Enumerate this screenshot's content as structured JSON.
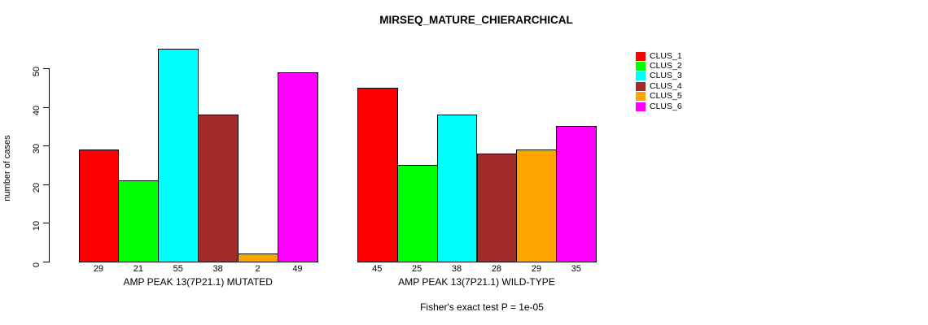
{
  "chart_data": {
    "type": "bar",
    "title": "MIRSEQ_MATURE_CHIERARCHICAL",
    "ylabel": "number of cases",
    "subtitle": "Fisher's exact test P = 1e-05",
    "ylim": [
      0,
      55
    ],
    "yticks": [
      0,
      10,
      20,
      30,
      40,
      50
    ],
    "grid": "off",
    "legend_position": "right",
    "bar_value_labels_shown": true,
    "categories": [
      "AMP PEAK 13(7P21.1) MUTATED",
      "AMP PEAK 13(7P21.1) WILD-TYPE"
    ],
    "series": [
      {
        "name": "CLUS_1",
        "color": "#FF0000",
        "values": [
          29,
          45
        ]
      },
      {
        "name": "CLUS_2",
        "color": "#00FF00",
        "values": [
          21,
          25
        ]
      },
      {
        "name": "CLUS_3",
        "color": "#00FFFF",
        "values": [
          55,
          38
        ]
      },
      {
        "name": "CLUS_4",
        "color": "#A52A2A",
        "values": [
          38,
          28
        ]
      },
      {
        "name": "CLUS_5",
        "color": "#FFA500",
        "values": [
          2,
          29
        ]
      },
      {
        "name": "CLUS_6",
        "color": "#FF00FF",
        "values": [
          49,
          35
        ]
      }
    ]
  },
  "colors": {
    "background": "#FFFFFF",
    "axis": "#000000",
    "text": "#000000"
  }
}
